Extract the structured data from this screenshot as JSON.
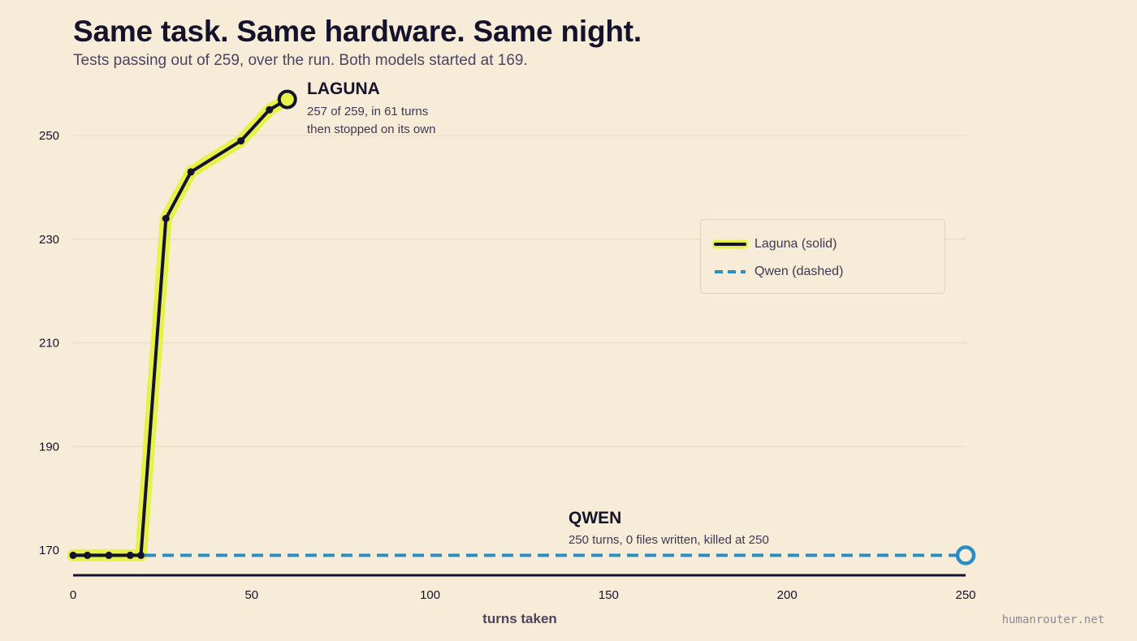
{
  "header": {
    "title": "Same task. Same hardware. Same night.",
    "subtitle": "Tests passing out of 259, over the run. Both models started at 169."
  },
  "watermark": "humanrouter.net",
  "chart_data": {
    "type": "line",
    "title": "Same task. Same hardware. Same night.",
    "subtitle": "Tests passing out of 259, over the run. Both models started at 169.",
    "xlabel": "turns taken",
    "ylabel": "",
    "xlim": [
      0,
      250
    ],
    "ylim": [
      165,
      260
    ],
    "x_ticks": [
      0,
      50,
      100,
      150,
      200,
      250
    ],
    "y_ticks": [
      170,
      190,
      210,
      230,
      250
    ],
    "grid": "horizontal",
    "legend_position": "top-right",
    "legend": [
      {
        "label": "Laguna (solid)",
        "style": "solid"
      },
      {
        "label": "Qwen (dashed)",
        "style": "dashed"
      }
    ],
    "series": [
      {
        "name": "Laguna",
        "style": "solid",
        "color": "#15132b",
        "highlight": "#e6f24a",
        "x": [
          0,
          4,
          10,
          16,
          19,
          26,
          33,
          47,
          55,
          60
        ],
        "y": [
          169,
          169,
          169,
          169,
          169,
          234,
          243,
          249,
          255,
          257
        ]
      },
      {
        "name": "Qwen",
        "style": "dashed",
        "color": "#2a8dc4",
        "x": [
          0,
          250
        ],
        "y": [
          169,
          169
        ]
      }
    ],
    "annotations": [
      {
        "series": "Laguna",
        "title": "LAGUNA",
        "lines": [
          "257 of 259, in 61 turns",
          "then stopped on its own"
        ]
      },
      {
        "series": "Qwen",
        "title": "QWEN",
        "lines": [
          "250 turns, 0 files written, killed at 250"
        ]
      }
    ]
  }
}
